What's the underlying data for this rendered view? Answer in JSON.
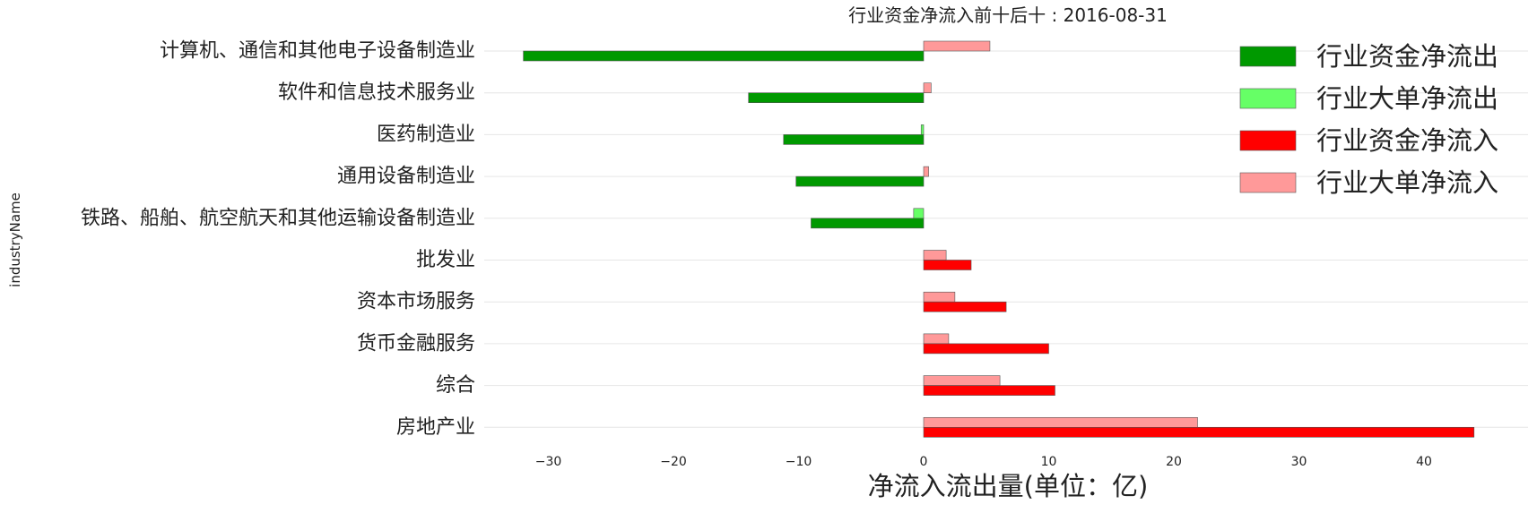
{
  "chart_data": {
    "type": "bar",
    "orientation": "horizontal",
    "title": "行业资金净流入前十后十 : 2016-08-31",
    "xlabel": "净流入流出量(单位：亿)",
    "ylabel": "industryName",
    "xlim": [
      -35,
      48
    ],
    "xticks": [
      -30,
      -20,
      -10,
      0,
      10,
      20,
      30,
      40
    ],
    "grid": true,
    "legend_position": "top-right",
    "categories": [
      "计算机、通信和其他电子设备制造业",
      "软件和信息技术服务业",
      "医药制造业",
      "通用设备制造业",
      "铁路、船舶、航空航天和其他运输设备制造业",
      "批发业",
      "资本市场服务",
      "货币金融服务",
      "综合",
      "房地产业"
    ],
    "series": [
      {
        "name": "行业资金净流出",
        "color": "#009900",
        "values": [
          -32,
          -14,
          -11.2,
          -10.2,
          -9,
          null,
          null,
          null,
          null,
          null
        ]
      },
      {
        "name": "行业大单净流出",
        "color": "#66ff66",
        "values": [
          null,
          null,
          -0.2,
          null,
          -0.8,
          null,
          null,
          null,
          null,
          null
        ]
      },
      {
        "name": "行业资金净流入",
        "color": "#ff0000",
        "values": [
          null,
          null,
          null,
          null,
          null,
          3.8,
          6.6,
          10,
          10.5,
          44
        ]
      },
      {
        "name": "行业大单净流入",
        "color": "#ff9999",
        "values": [
          5.3,
          0.6,
          null,
          0.4,
          null,
          1.8,
          2.5,
          2.0,
          6.1,
          21.9
        ]
      }
    ]
  }
}
